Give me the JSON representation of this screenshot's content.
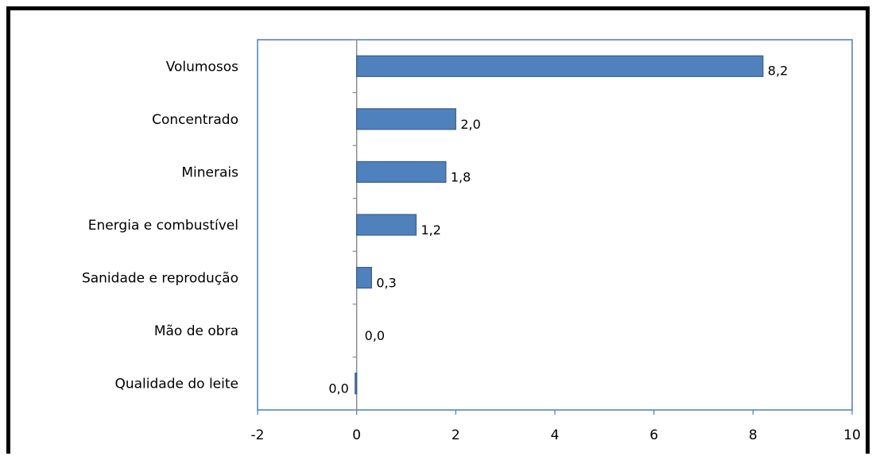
{
  "chart_data": {
    "type": "bar",
    "orientation": "horizontal",
    "categories": [
      "Volumosos",
      "Concentrado",
      "Minerais",
      "Energia e combustível",
      "Sanidade e reprodução",
      "Mão de obra",
      "Qualidade do leite"
    ],
    "values": [
      8.2,
      2.0,
      1.8,
      1.2,
      0.3,
      0.0,
      -0.03
    ],
    "data_labels": [
      "8,2",
      "2,0",
      "1,8",
      "1,2",
      "0,3",
      "0,0",
      "0,0"
    ],
    "xlim": [
      -2,
      10
    ],
    "xticks": [
      -2,
      0,
      2,
      4,
      6,
      8,
      10
    ],
    "xtick_labels": [
      "-2",
      "0",
      "2",
      "4",
      "6",
      "8",
      "10"
    ],
    "grid": false,
    "legend": "none",
    "bar_color": "#4f81bd",
    "bar_edge_color": "#385d8a",
    "plot_border_color": "#4a7ebb"
  }
}
